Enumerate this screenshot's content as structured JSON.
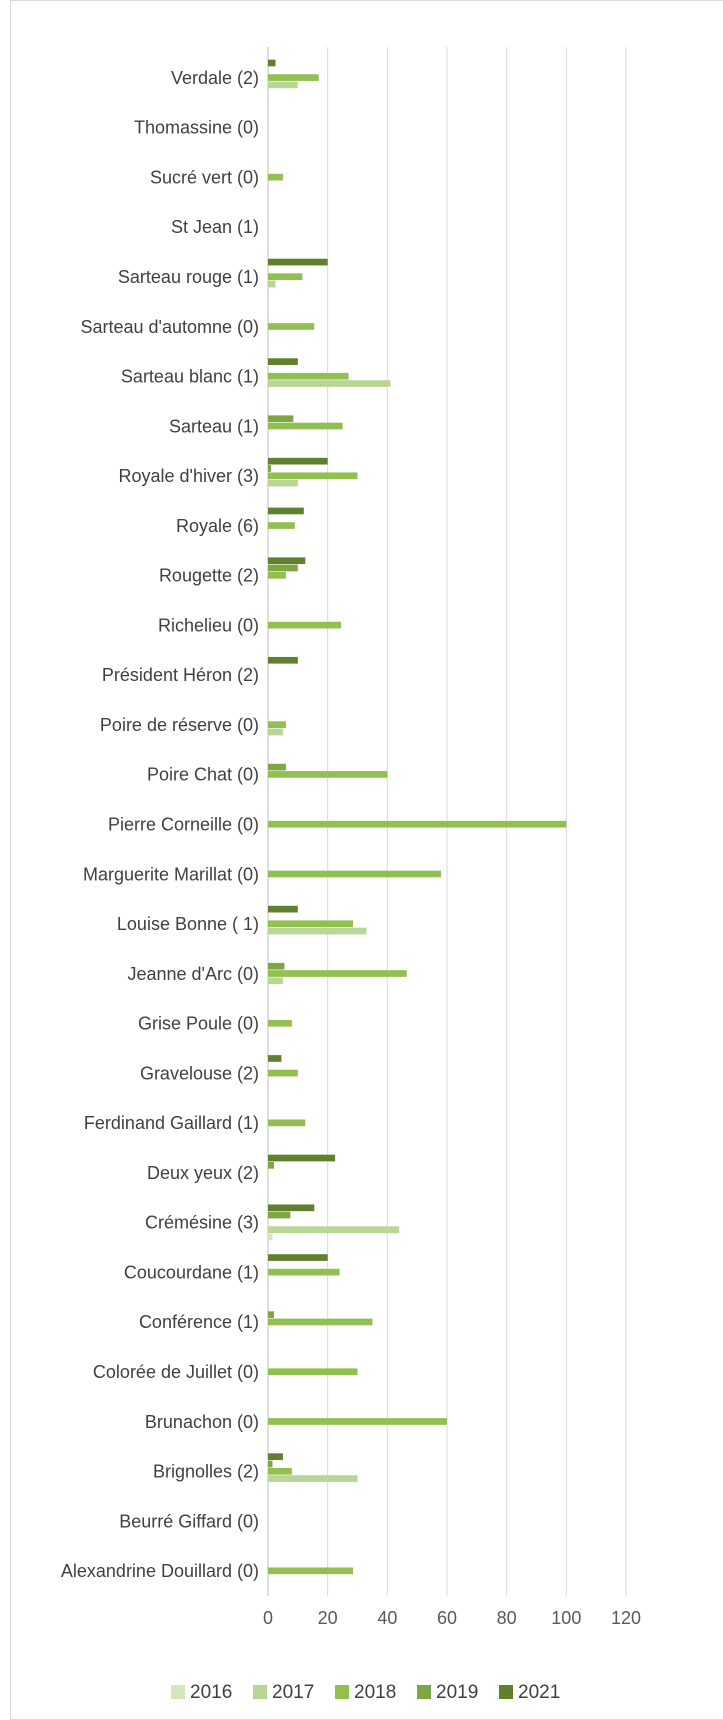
{
  "chart_data": {
    "type": "bar",
    "orientation": "horizontal",
    "title": "",
    "xlabel": "",
    "ylabel": "",
    "xlim": [
      0,
      120
    ],
    "xticks": [
      0,
      20,
      40,
      60,
      80,
      100,
      120
    ],
    "grid": true,
    "legend_position": "bottom",
    "categories": [
      "Verdale (2)",
      "Thomassine (0)",
      "Sucré vert (0)",
      "St Jean (1)",
      "Sarteau rouge (1)",
      "Sarteau d'automne (0)",
      "Sarteau blanc (1)",
      "Sarteau (1)",
      "Royale d'hiver (3)",
      "Royale (6)",
      "Rougette (2)",
      "Richelieu (0)",
      "Président  Héron (2)",
      "Poire de réserve (0)",
      "Poire Chat (0)",
      "Pierre  Corneille (0)",
      "Marguerite Marillat (0)",
      "Louise Bonne ( 1)",
      "Jeanne d'Arc (0)",
      "Grise Poule (0)",
      "Gravelouse (2)",
      "Ferdinand Gaillard (1)",
      "Deux yeux (2)",
      "Crémésine (3)",
      "Coucourdane (1)",
      "Conférence (1)",
      "Colorée de Juillet (0)",
      "Brunachon (0)",
      "Brignolles  (2)",
      "Beurré Giffard (0)",
      "Alexandrine Douillard (0)"
    ],
    "series": [
      {
        "name": "2016",
        "color": "#d4e6bd",
        "values": [
          0,
          0,
          0,
          0,
          0,
          0,
          0,
          0,
          0,
          0,
          0,
          0,
          0,
          0,
          0,
          0,
          0,
          0,
          0,
          0,
          0,
          0,
          0,
          1.5,
          0,
          0,
          0,
          0,
          0,
          0,
          0
        ]
      },
      {
        "name": "2017",
        "color": "#b8d696",
        "values": [
          10,
          0,
          0,
          0,
          2.5,
          0,
          41,
          0,
          10,
          0,
          0,
          0,
          0,
          5,
          0,
          0,
          0,
          33,
          5,
          0,
          0,
          0,
          0,
          44,
          0,
          0,
          0,
          0,
          30,
          0,
          0
        ]
      },
      {
        "name": "2018",
        "color": "#92c050",
        "values": [
          17,
          0,
          5,
          0,
          11.5,
          15.5,
          27,
          25,
          30,
          9,
          6,
          24.5,
          0,
          6,
          40,
          100,
          58,
          28.5,
          46.5,
          8,
          10,
          12.5,
          0,
          0,
          24,
          35,
          30,
          60,
          8,
          0,
          28.5
        ]
      },
      {
        "name": "2019",
        "color": "#7ea642",
        "values": [
          0,
          0,
          0,
          0,
          0,
          0,
          0,
          8.5,
          1,
          0,
          10,
          0,
          0,
          0,
          6,
          0,
          0,
          0,
          5.5,
          0,
          0,
          0,
          2,
          7.5,
          0,
          2,
          0,
          0,
          1.5,
          0,
          0
        ]
      },
      {
        "name": "2021",
        "color": "#61802f",
        "values": [
          2.5,
          0,
          0,
          0,
          20,
          0,
          10,
          0,
          20,
          12,
          12.5,
          0,
          10,
          0,
          0,
          0,
          0,
          10,
          0,
          0,
          4.5,
          0,
          22.5,
          15.5,
          20,
          0,
          0,
          0,
          5,
          0,
          0
        ]
      }
    ]
  }
}
